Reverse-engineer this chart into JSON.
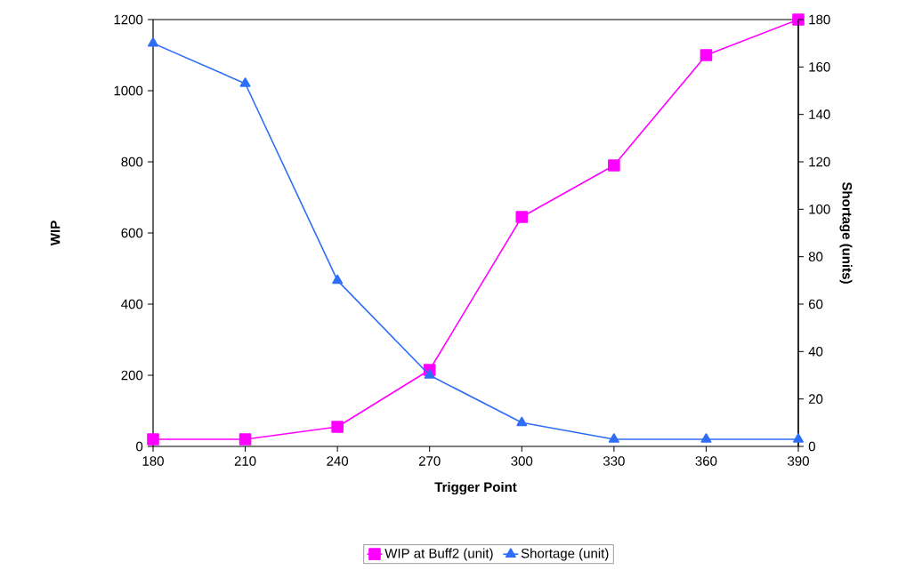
{
  "chart_data": {
    "type": "line",
    "xlabel": "Trigger Point",
    "ylabel": "WIP",
    "y2label": "Shortage (units)",
    "x": [
      180,
      210,
      240,
      270,
      300,
      330,
      360,
      390
    ],
    "xlim": [
      180,
      390
    ],
    "xticks": [
      180,
      210,
      240,
      270,
      300,
      330,
      360,
      390
    ],
    "ylim": [
      0,
      1200
    ],
    "yticks": [
      0,
      200,
      400,
      600,
      800,
      1000,
      1200
    ],
    "y2lim": [
      0,
      180
    ],
    "y2ticks": [
      0,
      20,
      40,
      60,
      80,
      100,
      120,
      140,
      160,
      180
    ],
    "grid": false,
    "legend": "bottom",
    "series": [
      {
        "name": "WIP at Buff2 (unit)",
        "color": "#ff00ff",
        "marker": "square",
        "values": [
          20,
          20,
          55,
          215,
          645,
          790,
          1100,
          1200
        ]
      },
      {
        "name": "Shortage (unit)",
        "color": "#2e6ef7",
        "marker": "triangle",
        "axis": "y2",
        "values": [
          170,
          153,
          70,
          30,
          10,
          3,
          3,
          3
        ]
      }
    ]
  }
}
